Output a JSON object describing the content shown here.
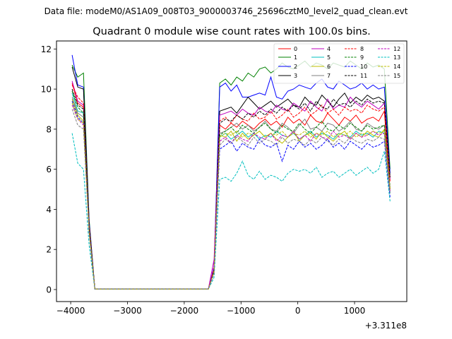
{
  "header": "Data file: modeM0/AS1A09_008T03_9000003746_25696cztM0_level2_quad_clean.evt",
  "chart_data": {
    "type": "line",
    "title": "Quadrant 0 module wise count rates with 100.0s bins.",
    "xlabel": "",
    "ylabel": "",
    "x_offset_label": "+3.311e8",
    "xlim": [
      -4250,
      1920
    ],
    "ylim": [
      -0.6,
      12.4
    ],
    "xticks": [
      -4000,
      -3000,
      -2000,
      -1000,
      0,
      1000
    ],
    "yticks": [
      0,
      2,
      4,
      6,
      8,
      10,
      12
    ],
    "legend_position": "top-right",
    "x": [
      -3975,
      -3875,
      -3775,
      -3675,
      -3575,
      -3475,
      -3375,
      -3275,
      -3175,
      -3075,
      -2975,
      -2875,
      -2775,
      -2675,
      -2575,
      -2475,
      -2375,
      -2275,
      -2175,
      -2075,
      -1975,
      -1875,
      -1775,
      -1675,
      -1575,
      -1475,
      -1375,
      -1275,
      -1175,
      -1075,
      -975,
      -875,
      -775,
      -675,
      -575,
      -475,
      -375,
      -275,
      -175,
      -75,
      25,
      125,
      225,
      325,
      425,
      525,
      625,
      725,
      825,
      925,
      1025,
      1125,
      1225,
      1325,
      1425,
      1525,
      1625
    ],
    "series": [
      {
        "name": "0",
        "color": "#ff0000",
        "dash": "solid",
        "values": [
          10.3,
          9.3,
          9.1,
          3.2,
          0.02,
          0.02,
          0.02,
          0.02,
          0.02,
          0.02,
          0.02,
          0.02,
          0.02,
          0.02,
          0.02,
          0.02,
          0.02,
          0.02,
          0.02,
          0.02,
          0.02,
          0.02,
          0.02,
          0.02,
          0.02,
          1.0,
          8.2,
          8.0,
          8.3,
          8.1,
          8.4,
          8.2,
          8.0,
          8.3,
          8.5,
          8.2,
          8.4,
          8.1,
          8.6,
          8.3,
          8.5,
          8.2,
          8.7,
          8.4,
          8.3,
          8.8,
          8.5,
          8.2,
          8.6,
          8.4,
          8.7,
          8.3,
          8.5,
          8.6,
          8.4,
          8.9,
          5.0
        ]
      },
      {
        "name": "1",
        "color": "#008000",
        "dash": "solid",
        "values": [
          11.2,
          10.6,
          10.8,
          3.5,
          0.02,
          0.02,
          0.02,
          0.02,
          0.02,
          0.02,
          0.02,
          0.02,
          0.02,
          0.02,
          0.02,
          0.02,
          0.02,
          0.02,
          0.02,
          0.02,
          0.02,
          0.02,
          0.02,
          0.02,
          0.02,
          1.1,
          10.3,
          10.5,
          10.2,
          10.6,
          10.4,
          10.8,
          10.6,
          11.0,
          11.1,
          10.8,
          11.0,
          11.3,
          11.1,
          11.0,
          11.2,
          11.4,
          11.1,
          11.3,
          11.2,
          11.0,
          11.3,
          11.2,
          11.1,
          11.4,
          11.2,
          11.0,
          11.3,
          11.1,
          11.2,
          11.0,
          6.0
        ]
      },
      {
        "name": "2",
        "color": "#0000ff",
        "dash": "solid",
        "values": [
          11.7,
          10.2,
          10.1,
          3.4,
          0.02,
          0.02,
          0.02,
          0.02,
          0.02,
          0.02,
          0.02,
          0.02,
          0.02,
          0.02,
          0.02,
          0.02,
          0.02,
          0.02,
          0.02,
          0.02,
          0.02,
          0.02,
          0.02,
          0.02,
          0.02,
          1.1,
          10.1,
          10.3,
          9.9,
          10.2,
          9.6,
          9.6,
          9.7,
          9.8,
          9.7,
          10.6,
          9.6,
          9.5,
          9.9,
          10.0,
          10.2,
          10.1,
          10.0,
          10.3,
          10.5,
          10.1,
          10.0,
          10.4,
          10.2,
          10.0,
          10.1,
          10.3,
          10.0,
          10.2,
          10.0,
          10.1,
          5.8
        ]
      },
      {
        "name": "3",
        "color": "#000000",
        "dash": "solid",
        "values": [
          11.1,
          10.1,
          10.0,
          3.3,
          0.02,
          0.02,
          0.02,
          0.02,
          0.02,
          0.02,
          0.02,
          0.02,
          0.02,
          0.02,
          0.02,
          0.02,
          0.02,
          0.02,
          0.02,
          0.02,
          0.02,
          0.02,
          0.02,
          0.02,
          0.02,
          1.0,
          8.9,
          9.0,
          9.1,
          8.8,
          9.2,
          9.6,
          9.3,
          9.0,
          9.2,
          9.4,
          9.1,
          9.3,
          9.5,
          9.2,
          9.1,
          9.6,
          9.3,
          9.2,
          9.7,
          9.4,
          9.1,
          9.5,
          9.8,
          9.3,
          9.6,
          9.4,
          9.7,
          9.5,
          9.6,
          9.4,
          5.6
        ]
      },
      {
        "name": "4",
        "color": "#bf00bf",
        "dash": "solid",
        "values": [
          10.4,
          9.4,
          9.2,
          3.2,
          0.02,
          0.02,
          0.02,
          0.02,
          0.02,
          0.02,
          0.02,
          0.02,
          0.02,
          0.02,
          0.02,
          0.02,
          0.02,
          0.02,
          0.02,
          0.02,
          0.02,
          0.02,
          0.02,
          0.02,
          0.02,
          1.5,
          8.7,
          8.8,
          8.9,
          8.7,
          9.0,
          8.8,
          8.7,
          9.1,
          8.9,
          8.8,
          9.2,
          9.0,
          8.9,
          9.3,
          9.1,
          8.9,
          9.4,
          9.1,
          8.9,
          9.5,
          9.0,
          9.2,
          9.1,
          9.6,
          9.3,
          9.1,
          9.4,
          9.2,
          9.0,
          9.3,
          5.5
        ]
      },
      {
        "name": "5",
        "color": "#00bfbf",
        "dash": "solid",
        "values": [
          9.8,
          8.9,
          8.8,
          3.0,
          0.02,
          0.02,
          0.02,
          0.02,
          0.02,
          0.02,
          0.02,
          0.02,
          0.02,
          0.02,
          0.02,
          0.02,
          0.02,
          0.02,
          0.02,
          0.02,
          0.02,
          0.02,
          0.02,
          0.02,
          0.02,
          0.9,
          7.6,
          7.8,
          7.5,
          7.7,
          7.9,
          7.6,
          7.8,
          7.5,
          7.7,
          7.6,
          7.9,
          7.7,
          7.6,
          7.8,
          7.5,
          7.7,
          7.9,
          7.6,
          7.8,
          7.7,
          7.5,
          7.8,
          7.7,
          7.6,
          7.9,
          7.7,
          7.8,
          7.6,
          7.9,
          7.8,
          4.8
        ]
      },
      {
        "name": "6",
        "color": "#bfbf00",
        "dash": "solid",
        "values": [
          9.5,
          8.7,
          8.4,
          2.9,
          0.02,
          0.02,
          0.02,
          0.02,
          0.02,
          0.02,
          0.02,
          0.02,
          0.02,
          0.02,
          0.02,
          0.02,
          0.02,
          0.02,
          0.02,
          0.02,
          0.02,
          0.02,
          0.02,
          0.02,
          0.02,
          0.9,
          7.7,
          7.6,
          7.9,
          7.4,
          7.8,
          7.5,
          7.7,
          7.9,
          7.6,
          7.8,
          7.5,
          7.3,
          7.6,
          7.9,
          7.4,
          7.7,
          7.8,
          7.5,
          7.9,
          7.6,
          7.4,
          7.7,
          7.9,
          7.5,
          7.8,
          7.6,
          7.9,
          7.7,
          7.6,
          8.0,
          4.9
        ]
      },
      {
        "name": "7",
        "color": "#808080",
        "dash": "solid",
        "values": [
          9.6,
          8.8,
          8.6,
          3.0,
          0.02,
          0.02,
          0.02,
          0.02,
          0.02,
          0.02,
          0.02,
          0.02,
          0.02,
          0.02,
          0.02,
          0.02,
          0.02,
          0.02,
          0.02,
          0.02,
          0.02,
          0.02,
          0.02,
          0.02,
          0.02,
          0.9,
          7.8,
          7.9,
          8.1,
          8.3,
          8.0,
          8.2,
          7.9,
          8.1,
          8.4,
          8.0,
          7.9,
          8.3,
          8.1,
          7.8,
          8.2,
          8.5,
          8.0,
          8.1,
          7.9,
          8.3,
          8.2,
          7.9,
          8.1,
          8.4,
          8.0,
          7.9,
          8.3,
          8.1,
          8.0,
          8.2,
          5.0
        ]
      },
      {
        "name": "8",
        "color": "#ff0000",
        "dash": "dashed",
        "values": [
          10.2,
          9.6,
          9.3,
          3.2,
          0.02,
          0.02,
          0.02,
          0.02,
          0.02,
          0.02,
          0.02,
          0.02,
          0.02,
          0.02,
          0.02,
          0.02,
          0.02,
          0.02,
          0.02,
          0.02,
          0.02,
          0.02,
          0.02,
          0.02,
          0.02,
          1.0,
          8.4,
          8.6,
          8.3,
          8.7,
          8.5,
          8.4,
          8.8,
          8.5,
          8.6,
          8.9,
          8.5,
          8.7,
          9.0,
          8.6,
          8.8,
          9.1,
          8.7,
          8.9,
          9.2,
          8.8,
          9.0,
          8.7,
          9.1,
          8.9,
          9.0,
          8.8,
          9.2,
          9.0,
          8.9,
          9.1,
          5.4
        ]
      },
      {
        "name": "9",
        "color": "#008000",
        "dash": "dashed",
        "values": [
          9.9,
          9.1,
          8.8,
          3.0,
          0.02,
          0.02,
          0.02,
          0.02,
          0.02,
          0.02,
          0.02,
          0.02,
          0.02,
          0.02,
          0.02,
          0.02,
          0.02,
          0.02,
          0.02,
          0.02,
          0.02,
          0.02,
          0.02,
          0.02,
          0.02,
          0.9,
          7.7,
          7.9,
          8.1,
          7.8,
          8.2,
          8.0,
          7.8,
          8.1,
          8.3,
          8.0,
          7.8,
          8.2,
          8.0,
          7.9,
          8.3,
          8.0,
          7.8,
          8.1,
          8.4,
          8.0,
          7.9,
          8.2,
          8.0,
          8.3,
          8.1,
          7.9,
          8.2,
          8.0,
          8.1,
          8.2,
          5.1
        ]
      },
      {
        "name": "10",
        "color": "#0000ff",
        "dash": "dashed",
        "values": [
          9.4,
          8.6,
          8.3,
          2.9,
          0.02,
          0.02,
          0.02,
          0.02,
          0.02,
          0.02,
          0.02,
          0.02,
          0.02,
          0.02,
          0.02,
          0.02,
          0.02,
          0.02,
          0.02,
          0.02,
          0.02,
          0.02,
          0.02,
          0.02,
          0.02,
          0.8,
          7.0,
          7.2,
          7.4,
          6.9,
          7.3,
          7.1,
          7.0,
          7.5,
          7.2,
          7.1,
          7.3,
          6.4,
          7.2,
          7.0,
          7.4,
          7.1,
          7.3,
          7.0,
          7.2,
          7.5,
          7.1,
          7.3,
          7.0,
          7.4,
          7.2,
          7.0,
          7.3,
          7.1,
          7.2,
          7.4,
          4.6
        ]
      },
      {
        "name": "11",
        "color": "#000000",
        "dash": "dashed",
        "values": [
          10.0,
          9.2,
          9.0,
          3.1,
          0.02,
          0.02,
          0.02,
          0.02,
          0.02,
          0.02,
          0.02,
          0.02,
          0.02,
          0.02,
          0.02,
          0.02,
          0.02,
          0.02,
          0.02,
          0.02,
          0.02,
          0.02,
          0.02,
          0.02,
          0.02,
          0.9,
          8.3,
          8.5,
          8.4,
          8.7,
          8.5,
          8.8,
          8.6,
          8.9,
          8.7,
          9.0,
          8.8,
          9.1,
          8.9,
          9.2,
          9.0,
          9.3,
          8.9,
          9.4,
          9.1,
          9.0,
          9.5,
          9.2,
          9.3,
          9.1,
          9.4,
          9.2,
          9.5,
          9.3,
          9.4,
          9.3,
          5.6
        ]
      },
      {
        "name": "12",
        "color": "#bf00bf",
        "dash": "dashed",
        "values": [
          9.2,
          8.5,
          8.2,
          2.8,
          0.02,
          0.02,
          0.02,
          0.02,
          0.02,
          0.02,
          0.02,
          0.02,
          0.02,
          0.02,
          0.02,
          0.02,
          0.02,
          0.02,
          0.02,
          0.02,
          0.02,
          0.02,
          0.02,
          0.02,
          0.02,
          1.2,
          7.4,
          7.6,
          7.3,
          7.7,
          7.5,
          7.4,
          7.8,
          7.6,
          7.5,
          7.8,
          7.4,
          7.7,
          7.6,
          7.9,
          7.5,
          7.7,
          7.4,
          7.8,
          7.6,
          7.5,
          7.9,
          7.6,
          7.7,
          7.5,
          7.8,
          7.6,
          7.7,
          7.9,
          7.7,
          7.8,
          4.9
        ]
      },
      {
        "name": "13",
        "color": "#00bfbf",
        "dash": "dashed",
        "values": [
          7.8,
          6.3,
          6.0,
          2.2,
          0.02,
          0.02,
          0.02,
          0.02,
          0.02,
          0.02,
          0.02,
          0.02,
          0.02,
          0.02,
          0.02,
          0.02,
          0.02,
          0.02,
          0.02,
          0.02,
          0.02,
          0.02,
          0.02,
          0.02,
          0.02,
          0.6,
          5.5,
          5.6,
          5.4,
          5.8,
          6.4,
          5.7,
          5.5,
          5.9,
          5.5,
          5.7,
          5.6,
          5.4,
          5.8,
          6.0,
          5.9,
          6.0,
          5.8,
          6.1,
          5.6,
          5.8,
          5.9,
          5.6,
          5.8,
          6.0,
          5.7,
          5.9,
          6.1,
          5.8,
          6.0,
          6.9,
          4.4
        ]
      },
      {
        "name": "14",
        "color": "#bfbf00",
        "dash": "dashed",
        "values": [
          9.3,
          8.5,
          8.3,
          2.9,
          0.02,
          0.02,
          0.02,
          0.02,
          0.02,
          0.02,
          0.02,
          0.02,
          0.02,
          0.02,
          0.02,
          0.02,
          0.02,
          0.02,
          0.02,
          0.02,
          0.02,
          0.02,
          0.02,
          0.02,
          0.02,
          0.9,
          7.6,
          7.8,
          7.7,
          7.9,
          7.6,
          7.8,
          7.7,
          7.9,
          7.6,
          7.8,
          7.7,
          7.9,
          7.6,
          7.8,
          7.7,
          7.9,
          7.6,
          7.8,
          7.7,
          7.9,
          7.6,
          7.8,
          7.7,
          7.9,
          7.6,
          7.8,
          7.7,
          7.9,
          7.8,
          7.9,
          5.0
        ]
      },
      {
        "name": "15",
        "color": "#808080",
        "dash": "dashed",
        "values": [
          9.0,
          8.2,
          8.0,
          2.8,
          0.02,
          0.02,
          0.02,
          0.02,
          0.02,
          0.02,
          0.02,
          0.02,
          0.02,
          0.02,
          0.02,
          0.02,
          0.02,
          0.02,
          0.02,
          0.02,
          0.02,
          0.02,
          0.02,
          0.02,
          0.02,
          0.8,
          7.2,
          7.5,
          7.3,
          7.6,
          7.4,
          7.2,
          7.6,
          7.3,
          7.5,
          7.4,
          7.2,
          7.6,
          7.3,
          7.5,
          7.4,
          7.2,
          7.5,
          7.3,
          7.6,
          7.4,
          7.2,
          7.5,
          7.3,
          7.6,
          7.4,
          7.3,
          7.5,
          7.4,
          7.6,
          7.5,
          4.8
        ]
      }
    ]
  }
}
